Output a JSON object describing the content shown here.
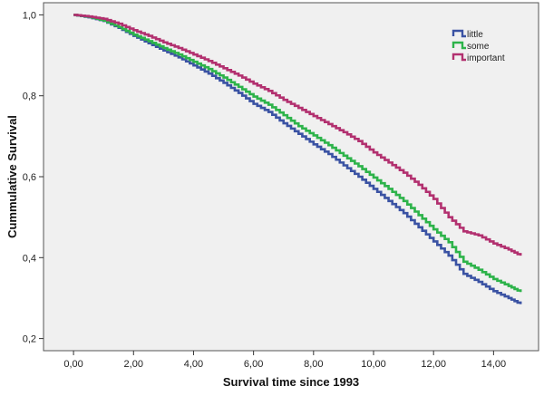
{
  "chart_data": {
    "type": "line",
    "title": "",
    "xlabel": "Survival time since 1993",
    "ylabel": "Cummulative Survival",
    "xlim": [
      -1.0,
      15.5
    ],
    "ylim": [
      0.17,
      1.03
    ],
    "x_ticks": [
      0,
      2,
      4,
      6,
      8,
      10,
      12,
      14
    ],
    "x_tick_labels": [
      "0,00",
      "2,00",
      "4,00",
      "6,00",
      "8,00",
      "10,00",
      "12,00",
      "14,00"
    ],
    "y_ticks": [
      0.2,
      0.4,
      0.6,
      0.8,
      1.0
    ],
    "y_tick_labels": [
      "0,2",
      "0,4",
      "0,6",
      "0,8",
      "1,0"
    ],
    "grid": false,
    "legend_position": "top-right",
    "series": [
      {
        "name": "little",
        "color": "#3a52a3",
        "x": [
          0,
          0.5,
          1.0,
          1.5,
          2.0,
          2.5,
          3.0,
          3.5,
          4.0,
          4.5,
          5.0,
          5.5,
          6.0,
          6.5,
          7.0,
          7.5,
          8.0,
          8.5,
          9.0,
          9.5,
          10.0,
          10.5,
          11.0,
          11.5,
          12.0,
          12.5,
          13.0,
          13.5,
          14.0,
          14.5,
          14.9
        ],
        "y": [
          1.0,
          0.994,
          0.985,
          0.968,
          0.948,
          0.93,
          0.912,
          0.895,
          0.875,
          0.855,
          0.832,
          0.807,
          0.78,
          0.76,
          0.732,
          0.706,
          0.68,
          0.656,
          0.628,
          0.6,
          0.57,
          0.54,
          0.51,
          0.475,
          0.44,
          0.405,
          0.36,
          0.34,
          0.317,
          0.3,
          0.285
        ]
      },
      {
        "name": "some",
        "color": "#2db34a",
        "x": [
          0,
          0.5,
          1.0,
          1.5,
          2.0,
          2.5,
          3.0,
          3.5,
          4.0,
          4.5,
          5.0,
          5.5,
          6.0,
          6.5,
          7.0,
          7.5,
          8.0,
          8.5,
          9.0,
          9.5,
          10.0,
          10.5,
          11.0,
          11.5,
          12.0,
          12.5,
          13.0,
          13.5,
          14.0,
          14.5,
          14.9
        ],
        "y": [
          1.0,
          0.995,
          0.986,
          0.97,
          0.951,
          0.935,
          0.918,
          0.902,
          0.884,
          0.866,
          0.845,
          0.822,
          0.798,
          0.778,
          0.752,
          0.725,
          0.702,
          0.678,
          0.652,
          0.626,
          0.598,
          0.57,
          0.54,
          0.505,
          0.47,
          0.438,
          0.39,
          0.37,
          0.347,
          0.33,
          0.315
        ]
      },
      {
        "name": "important",
        "color": "#b2306f",
        "x": [
          0,
          0.5,
          1.0,
          1.5,
          2.0,
          2.5,
          3.0,
          3.5,
          4.0,
          4.5,
          5.0,
          5.5,
          6.0,
          6.5,
          7.0,
          7.5,
          8.0,
          8.5,
          9.0,
          9.5,
          10.0,
          10.5,
          11.0,
          11.5,
          12.0,
          12.5,
          13.0,
          13.5,
          14.0,
          14.5,
          14.9
        ],
        "y": [
          1.0,
          0.996,
          0.99,
          0.978,
          0.962,
          0.948,
          0.932,
          0.918,
          0.902,
          0.886,
          0.868,
          0.85,
          0.83,
          0.812,
          0.79,
          0.77,
          0.75,
          0.73,
          0.71,
          0.688,
          0.66,
          0.635,
          0.61,
          0.58,
          0.545,
          0.5,
          0.465,
          0.455,
          0.435,
          0.42,
          0.405
        ]
      }
    ]
  }
}
